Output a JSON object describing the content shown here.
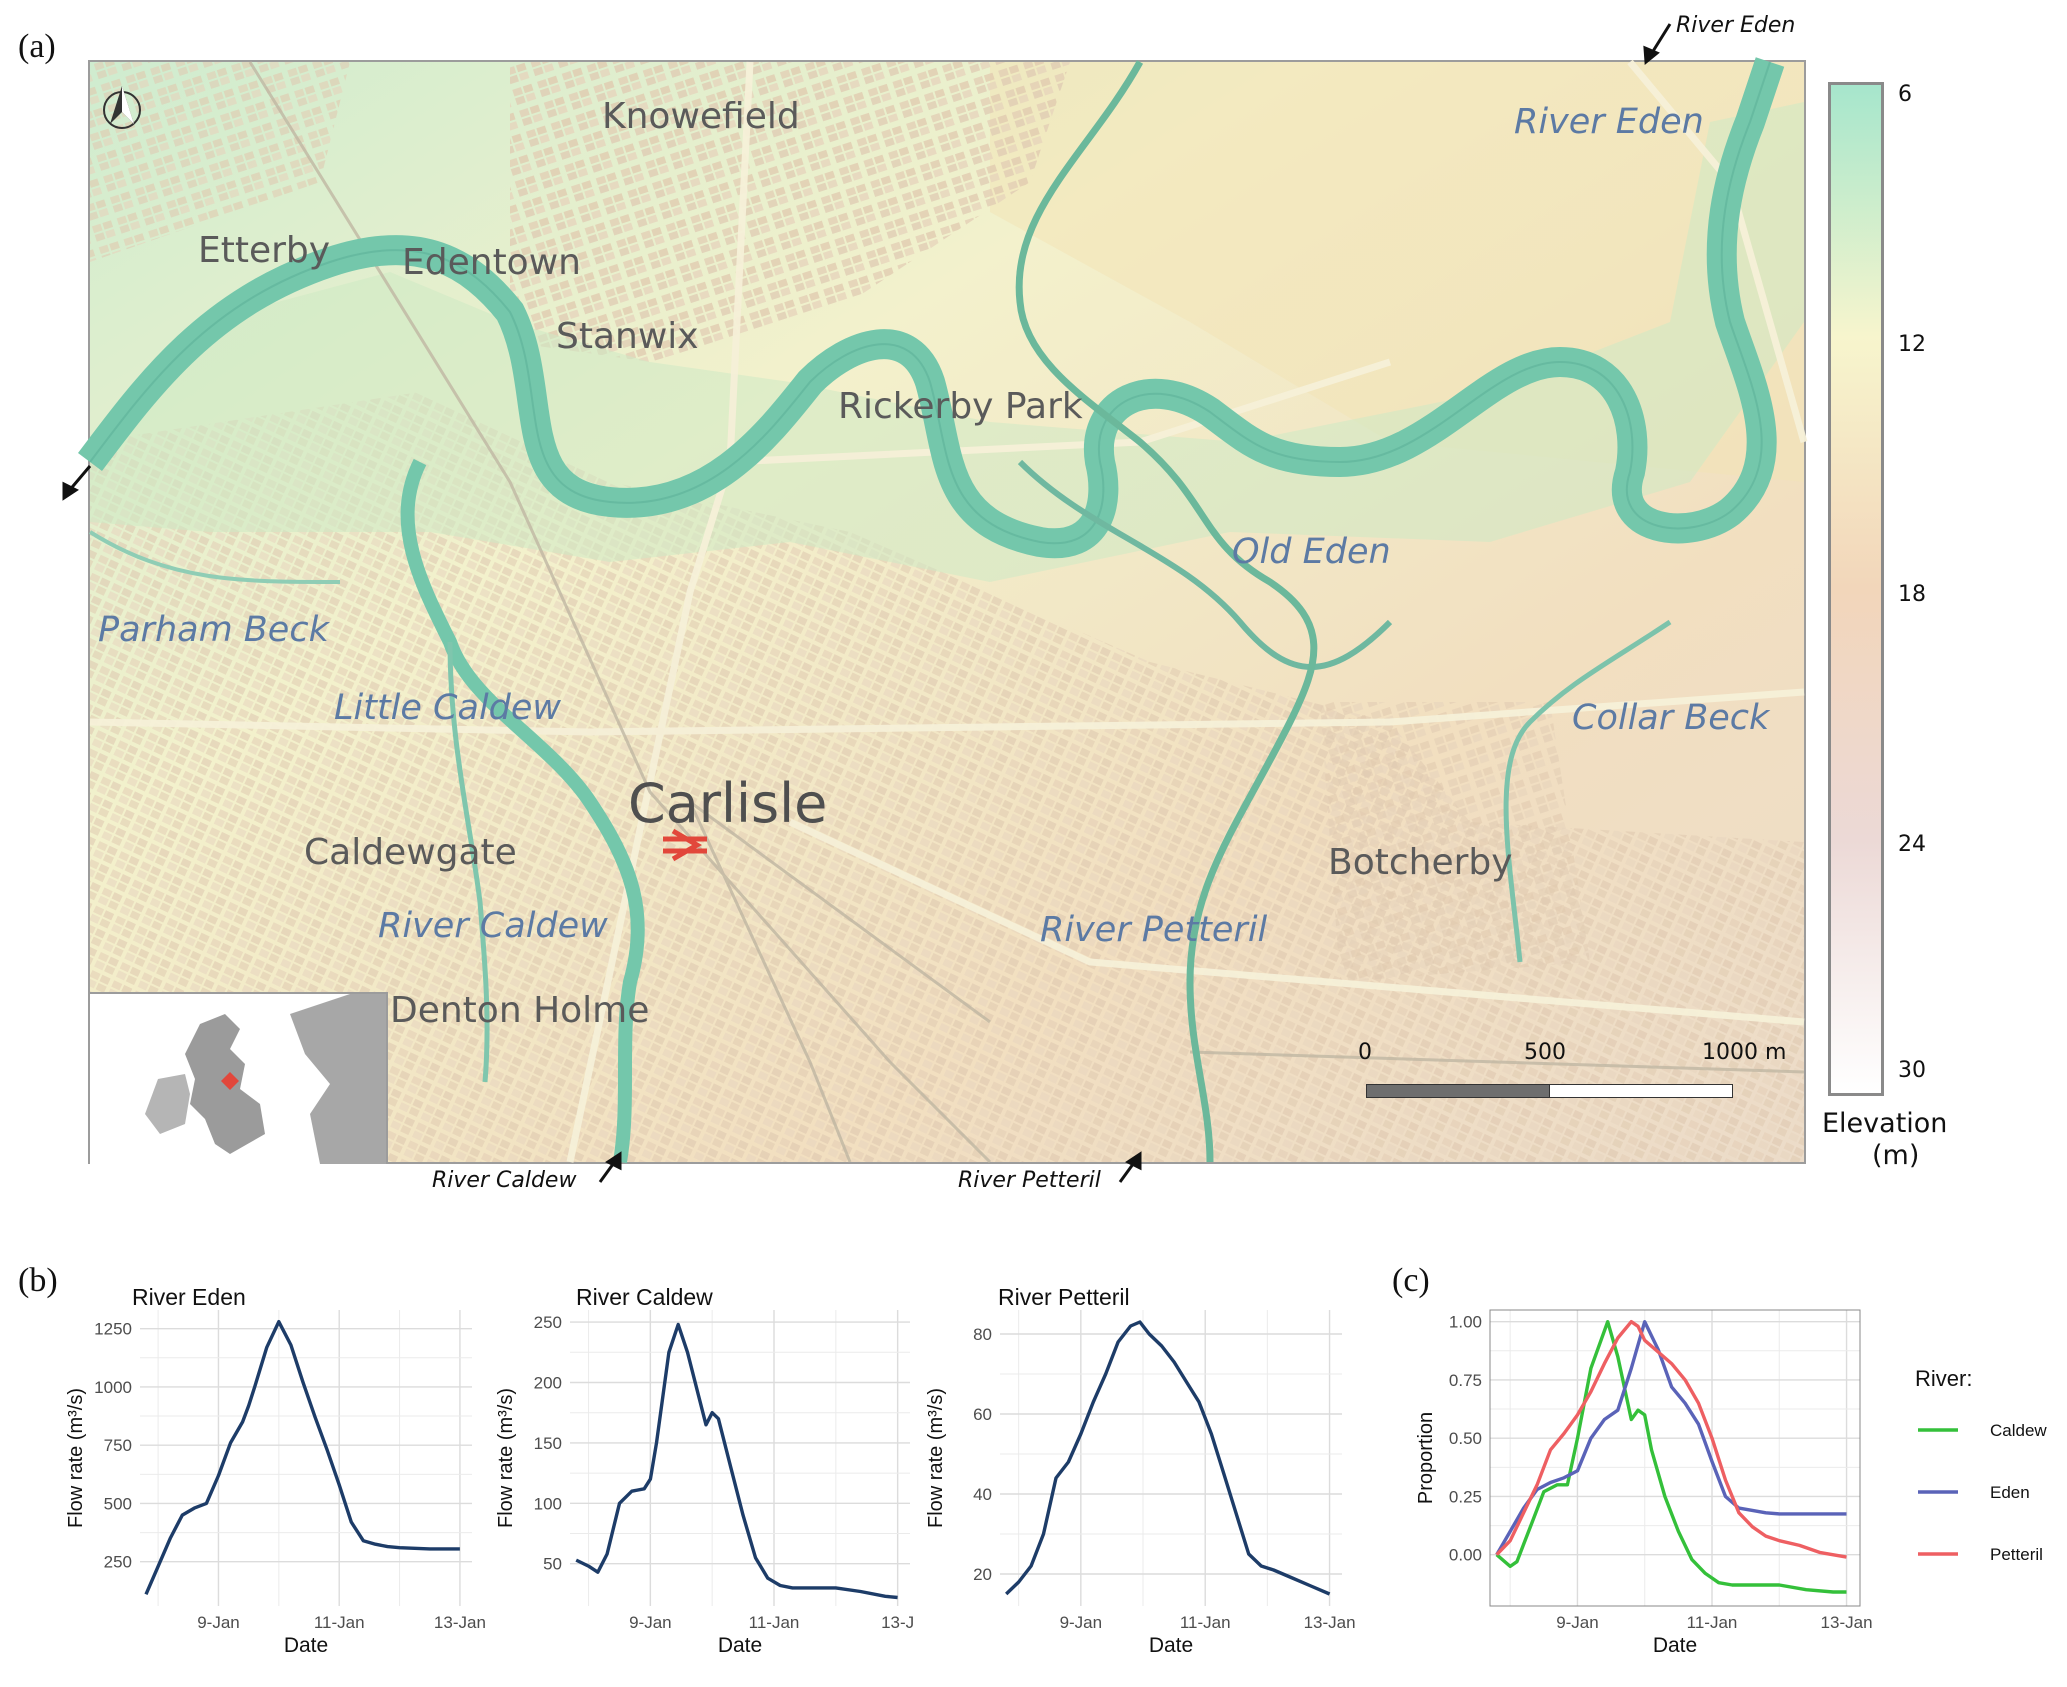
{
  "panels": {
    "a": "(a)",
    "b": "(b)",
    "c": "(c)"
  },
  "map": {
    "places": [
      {
        "id": "knowefield",
        "text": "Knowefield"
      },
      {
        "id": "etterby",
        "text": "Etterby"
      },
      {
        "id": "edentown",
        "text": "Edentown"
      },
      {
        "id": "stanwix",
        "text": "Stanwix"
      },
      {
        "id": "rickerby",
        "text": "Rickerby Park"
      },
      {
        "id": "carlisle",
        "text": "Carlisle"
      },
      {
        "id": "caldewgate",
        "text": "Caldewgate"
      },
      {
        "id": "botcherby",
        "text": "Botcherby"
      },
      {
        "id": "denton",
        "text": "Denton Holme"
      }
    ],
    "water": [
      {
        "id": "eden",
        "text": "River Eden"
      },
      {
        "id": "oldeden",
        "text": "Old Eden"
      },
      {
        "id": "parham",
        "text": "Parham Beck"
      },
      {
        "id": "littlecaldew",
        "text": "Little Caldew"
      },
      {
        "id": "caldew",
        "text": "River Caldew"
      },
      {
        "id": "petteril",
        "text": "River Petteril"
      },
      {
        "id": "collar",
        "text": "Collar Beck"
      }
    ],
    "arrows": {
      "eden": "River Eden",
      "caldew": "River Caldew",
      "petteril": "River Petteril"
    },
    "scale_bar": {
      "zero": "0",
      "mid": "500",
      "end": "1000 m"
    },
    "legend": {
      "title_line1": "Elevation",
      "title_line2": "(m)",
      "ticks": [
        "6",
        "12",
        "18",
        "24",
        "30"
      ],
      "colors": [
        "#a6e6cc",
        "#f7f5cd",
        "#f2d6ba",
        "#ecd9d6",
        "#ffffff"
      ]
    }
  },
  "chart_data": [
    {
      "type": "line",
      "title": "River Eden",
      "xlabel": "Date",
      "ylabel": "Flow rate (m³/s)",
      "x_ticks": [
        "9-Jan",
        "11-Jan",
        "13-Jan"
      ],
      "x_range_days": [
        7.7,
        13.2
      ],
      "ylim": [
        60,
        1330
      ],
      "y_ticks": [
        250,
        500,
        750,
        1000,
        1250
      ],
      "color": "#1d3c68",
      "x": [
        7.8,
        8.0,
        8.2,
        8.4,
        8.6,
        8.8,
        9.0,
        9.2,
        9.4,
        9.5,
        9.6,
        9.8,
        10.0,
        10.2,
        10.4,
        10.6,
        10.8,
        11.0,
        11.2,
        11.4,
        11.6,
        11.8,
        12.0,
        12.2,
        12.5,
        12.8,
        13.0
      ],
      "y": [
        110,
        230,
        350,
        450,
        480,
        500,
        620,
        760,
        850,
        920,
        1000,
        1170,
        1280,
        1180,
        1020,
        870,
        730,
        580,
        420,
        340,
        325,
        315,
        310,
        308,
        305,
        305,
        305
      ]
    },
    {
      "type": "line",
      "title": "River Caldew",
      "xlabel": "Date",
      "ylabel": "Flow rate (m³/s)",
      "x_ticks": [
        "9-Jan",
        "11-Jan",
        "13-J"
      ],
      "x_range_days": [
        7.7,
        13.2
      ],
      "ylim": [
        15,
        260
      ],
      "y_ticks": [
        50,
        100,
        150,
        200,
        250
      ],
      "color": "#1d3c68",
      "x": [
        7.8,
        8.0,
        8.15,
        8.3,
        8.5,
        8.7,
        8.9,
        9.0,
        9.1,
        9.3,
        9.45,
        9.6,
        9.8,
        9.9,
        10.0,
        10.1,
        10.3,
        10.5,
        10.7,
        10.9,
        11.1,
        11.3,
        11.6,
        12.0,
        12.4,
        12.8,
        13.0
      ],
      "y": [
        53,
        48,
        43,
        58,
        100,
        110,
        112,
        120,
        150,
        225,
        248,
        225,
        185,
        165,
        175,
        170,
        130,
        90,
        55,
        38,
        32,
        30,
        30,
        30,
        27,
        23,
        22
      ]
    },
    {
      "type": "line",
      "title": "River Petteril",
      "xlabel": "Date",
      "ylabel": "Flow rate (m³/s)",
      "x_ticks": [
        "9-Jan",
        "11-Jan",
        "13-Jan"
      ],
      "x_range_days": [
        7.7,
        13.2
      ],
      "ylim": [
        12,
        86
      ],
      "y_ticks": [
        20,
        40,
        60,
        80
      ],
      "color": "#1d3c68",
      "x": [
        7.8,
        8.0,
        8.2,
        8.4,
        8.6,
        8.8,
        9.0,
        9.2,
        9.4,
        9.6,
        9.8,
        9.95,
        10.1,
        10.3,
        10.5,
        10.7,
        10.9,
        11.1,
        11.3,
        11.5,
        11.7,
        11.9,
        12.1,
        12.4,
        12.7,
        13.0
      ],
      "y": [
        15,
        18,
        22,
        30,
        44,
        48,
        55,
        63,
        70,
        78,
        82,
        83,
        80,
        77,
        73,
        68,
        63,
        55,
        45,
        35,
        25,
        22,
        21,
        19,
        17,
        15
      ]
    },
    {
      "type": "line",
      "xlabel": "Date",
      "ylabel": "Proportion",
      "x_ticks": [
        "9-Jan",
        "11-Jan",
        "13-Jan"
      ],
      "x_range_days": [
        7.7,
        13.2
      ],
      "ylim": [
        -0.22,
        1.05
      ],
      "y_ticks": [
        "0.00",
        "0.25",
        "0.50",
        "0.75",
        "1.00"
      ],
      "legend_title": "River:",
      "legend_position": "right",
      "series": [
        {
          "name": "Caldew",
          "color": "#34c03a",
          "x": [
            7.8,
            8.0,
            8.1,
            8.3,
            8.5,
            8.7,
            8.85,
            9.0,
            9.2,
            9.45,
            9.6,
            9.8,
            9.9,
            10.0,
            10.1,
            10.3,
            10.5,
            10.7,
            10.9,
            11.1,
            11.3,
            11.6,
            12.0,
            12.4,
            12.8,
            13.0
          ],
          "y": [
            0.0,
            -0.05,
            -0.03,
            0.12,
            0.27,
            0.3,
            0.3,
            0.5,
            0.8,
            1.0,
            0.85,
            0.58,
            0.62,
            0.6,
            0.45,
            0.25,
            0.1,
            -0.02,
            -0.08,
            -0.12,
            -0.13,
            -0.13,
            -0.13,
            -0.15,
            -0.16,
            -0.16
          ]
        },
        {
          "name": "Eden",
          "color": "#5a63b8",
          "x": [
            7.8,
            8.0,
            8.2,
            8.4,
            8.6,
            8.8,
            9.0,
            9.2,
            9.4,
            9.6,
            9.8,
            10.0,
            10.2,
            10.4,
            10.6,
            10.8,
            11.0,
            11.2,
            11.4,
            11.6,
            11.8,
            12.0,
            12.3,
            12.6,
            13.0
          ],
          "y": [
            0.0,
            0.1,
            0.2,
            0.28,
            0.31,
            0.33,
            0.36,
            0.5,
            0.58,
            0.62,
            0.8,
            1.0,
            0.88,
            0.72,
            0.65,
            0.56,
            0.4,
            0.25,
            0.2,
            0.19,
            0.18,
            0.175,
            0.175,
            0.175,
            0.175
          ]
        },
        {
          "name": "Petteril",
          "color": "#ee5f62",
          "x": [
            7.8,
            8.0,
            8.2,
            8.4,
            8.6,
            8.8,
            9.0,
            9.2,
            9.4,
            9.6,
            9.8,
            9.9,
            10.0,
            10.2,
            10.4,
            10.6,
            10.8,
            11.0,
            11.2,
            11.4,
            11.6,
            11.8,
            12.0,
            12.3,
            12.6,
            13.0
          ],
          "y": [
            0.0,
            0.06,
            0.18,
            0.3,
            0.45,
            0.52,
            0.6,
            0.7,
            0.82,
            0.93,
            1.0,
            0.98,
            0.92,
            0.87,
            0.82,
            0.75,
            0.65,
            0.5,
            0.32,
            0.18,
            0.12,
            0.08,
            0.06,
            0.04,
            0.01,
            -0.01
          ]
        }
      ]
    }
  ]
}
